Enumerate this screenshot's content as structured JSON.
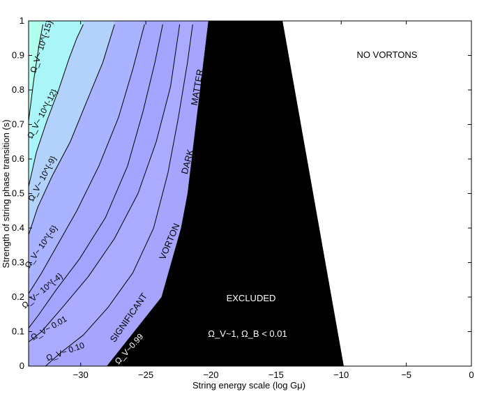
{
  "chart_data": {
    "type": "area",
    "xlabel": "String energy scale (log Gμ)",
    "ylabel": "Strength of string phase transition (s)",
    "xlim": [
      -34,
      0
    ],
    "ylim": [
      0,
      1
    ],
    "xticks": [
      "−30",
      "−25",
      "−20",
      "−15",
      "−10",
      "−5",
      "0"
    ],
    "xtick_values": [
      -30,
      -25,
      -20,
      -15,
      -10,
      -5,
      0
    ],
    "yticks": [
      "0",
      "0.1",
      "0.2",
      "0.3",
      "0.4",
      "0.5",
      "0.6",
      "0.7",
      "0.8",
      "0.9",
      "1"
    ],
    "ytick_values": [
      0,
      0.1,
      0.2,
      0.3,
      0.4,
      0.5,
      0.6,
      0.7,
      0.8,
      0.9,
      1
    ],
    "regions": [
      {
        "label": "EXCLUDED",
        "color": "#000000",
        "boundary": [
          [
            -28,
            0
          ],
          [
            -23.8,
            0.2
          ],
          [
            -22.3,
            0.4
          ],
          [
            -21.8,
            0.5
          ],
          [
            -20.2,
            0.99
          ],
          [
            -14.5,
            0.99
          ],
          [
            -9.8,
            0
          ]
        ]
      },
      {
        "label": "NO VORTONS",
        "color": "#ffffff"
      }
    ],
    "contours": [
      {
        "label": "Ω_V~ 10^{-15}",
        "points": [
          [
            -34,
            0.71
          ],
          [
            -33.6,
            0.83
          ],
          [
            -33.2,
            0.93
          ],
          [
            -32.9,
            0.99
          ]
        ]
      },
      {
        "label": "Ω_V~ 10^{-12}",
        "points": [
          [
            -34,
            0.52
          ],
          [
            -33.4,
            0.62
          ],
          [
            -32.6,
            0.71
          ],
          [
            -31.7,
            0.8
          ],
          [
            -30.9,
            0.89
          ],
          [
            -30.3,
            0.95
          ],
          [
            -29.8,
            0.99
          ]
        ]
      },
      {
        "label": "Ω_V~ 10^{-9}",
        "points": [
          [
            -34,
            0.38
          ],
          [
            -33.3,
            0.46
          ],
          [
            -32.2,
            0.55
          ],
          [
            -30.8,
            0.65
          ],
          [
            -29.5,
            0.77
          ],
          [
            -28.3,
            0.88
          ],
          [
            -27.4,
            0.99
          ]
        ]
      },
      {
        "label": "Ω_V~ 10^{-6}",
        "points": [
          [
            -34,
            0.21
          ],
          [
            -33,
            0.27
          ],
          [
            -31.8,
            0.35
          ],
          [
            -30.3,
            0.45
          ],
          [
            -28.6,
            0.58
          ],
          [
            -27.1,
            0.72
          ],
          [
            -26,
            0.86
          ],
          [
            -25.1,
            0.99
          ]
        ]
      },
      {
        "label": "Ω_V~ 10^{-4}",
        "points": [
          [
            -34,
            0.11
          ],
          [
            -33.2,
            0.15
          ],
          [
            -31.9,
            0.22
          ],
          [
            -30.1,
            0.31
          ],
          [
            -28.1,
            0.43
          ],
          [
            -26.4,
            0.58
          ],
          [
            -25.2,
            0.74
          ],
          [
            -24.3,
            0.88
          ],
          [
            -23.7,
            0.99
          ]
        ]
      },
      {
        "label": "Ω_V~ 0.01",
        "points": [
          [
            -34,
            0.07
          ],
          [
            -33,
            0.1
          ],
          [
            -31.4,
            0.17
          ],
          [
            -29.4,
            0.26
          ],
          [
            -27.4,
            0.37
          ],
          [
            -25.6,
            0.5
          ],
          [
            -24.2,
            0.65
          ],
          [
            -23.1,
            0.81
          ],
          [
            -22.4,
            0.99
          ]
        ]
      },
      {
        "label": "Ω_V~ 0.10",
        "points": [
          [
            -32.7,
            0
          ],
          [
            -31.5,
            0.04
          ],
          [
            -29.8,
            0.09
          ],
          [
            -27.9,
            0.17
          ],
          [
            -26,
            0.27
          ],
          [
            -24.4,
            0.4
          ],
          [
            -23.3,
            0.56
          ],
          [
            -22.5,
            0.72
          ],
          [
            -21.8,
            0.88
          ],
          [
            -21.4,
            0.99
          ]
        ]
      },
      {
        "label": "Ω_V~0.99",
        "points": []
      }
    ],
    "fill_bands": [
      "#b3ffee",
      "#a9f5f7",
      "#b2d2fb",
      "#aab3ff",
      "#a6a7ff",
      "#a3a4ff",
      "#aaaaff",
      "#a7a4fe"
    ],
    "annotations": {
      "matter": "MATTER",
      "dark": "DARK",
      "vorton": "VORTON",
      "significant": "SIGNIFICANT",
      "excluded": "EXCLUDED",
      "no_vortons": "NO VORTONS",
      "omega_condition": "Ω_V~1, Ω_B < 0.01"
    }
  }
}
